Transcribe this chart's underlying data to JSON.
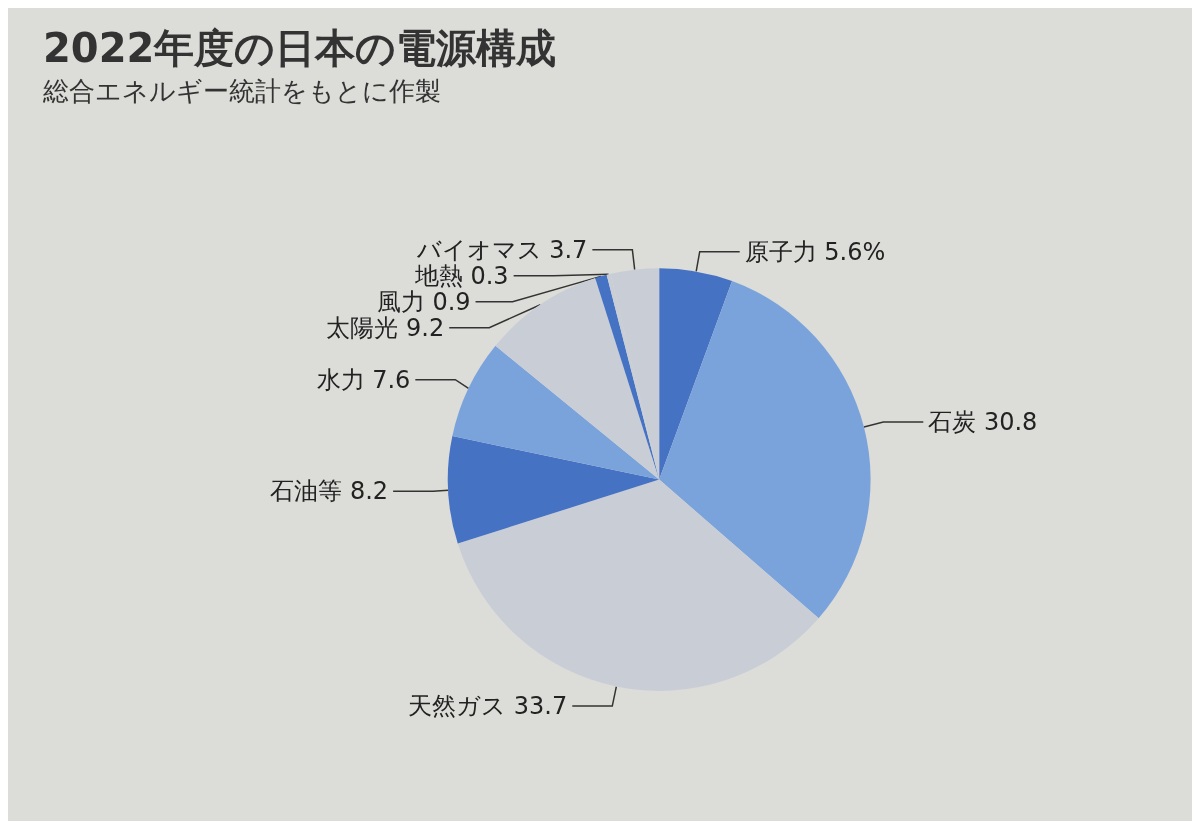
{
  "chart_data": {
    "type": "pie",
    "title": "2022年度の日本の電源構成",
    "subtitle": "総合エネルギー統計をもとに作製",
    "categories": [
      "原子力",
      "石炭",
      "天然ガス",
      "石油等",
      "水力",
      "太陽光",
      "風力",
      "地熱",
      "バイオマス"
    ],
    "values": [
      5.6,
      30.8,
      33.7,
      8.2,
      7.6,
      9.2,
      0.9,
      0.3,
      3.7
    ],
    "value_labels": [
      "5.6%",
      "30.8",
      "33.7",
      "8.2",
      "7.6",
      "9.2",
      "0.9",
      "0.3",
      "3.7"
    ],
    "colors": [
      "#4672c4",
      "#7aa3dc",
      "#c9ced6",
      "#4672c4",
      "#7aa3dc",
      "#c9ced6",
      "#4672c4",
      "#c9ced6",
      "#c9ced6"
    ]
  }
}
